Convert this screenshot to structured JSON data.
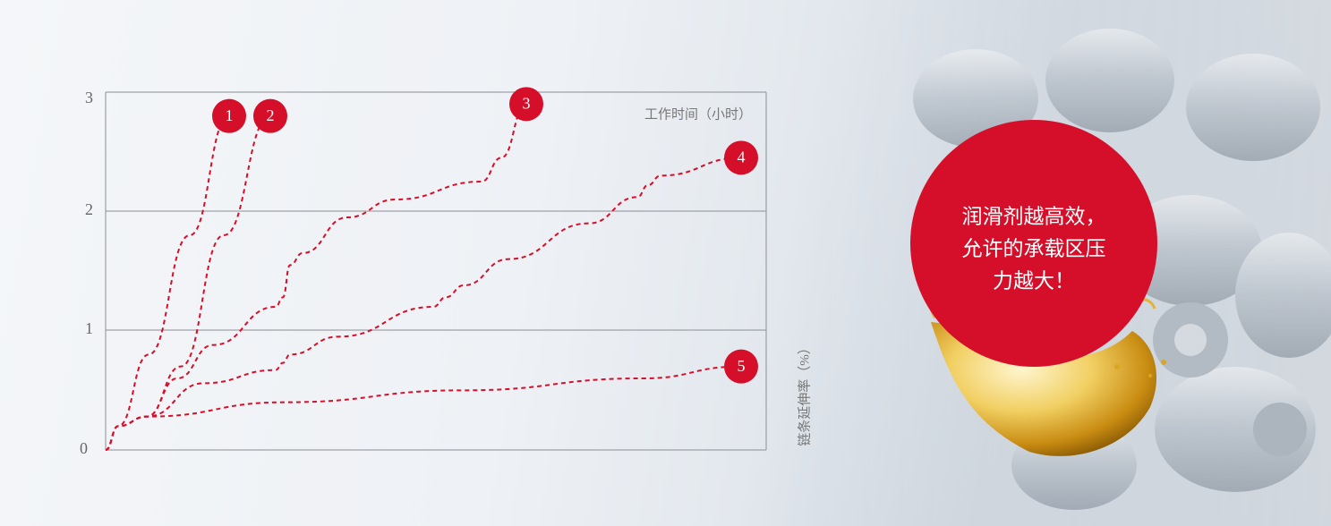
{
  "callout": {
    "lines": [
      "润滑剂越高效，",
      "允许的承载区压",
      "力越大！"
    ],
    "color": "#d50f2a"
  },
  "chart_data": {
    "type": "line",
    "x_label": "工作时间（小时）",
    "y_label": "链条延伸率（%）",
    "ylim": [
      0,
      3
    ],
    "y_ticks": [
      "0",
      "1",
      "2",
      "3"
    ],
    "grid": true,
    "line_style": "dashed",
    "line_color": "#d50f2a",
    "series": [
      {
        "marker": "1",
        "points": [
          [
            0,
            0
          ],
          [
            7,
            0.2
          ],
          [
            24,
            0.8
          ],
          [
            47,
            1.8
          ],
          [
            69,
            2.8
          ]
        ]
      },
      {
        "marker": "2",
        "points": [
          [
            0,
            0
          ],
          [
            7,
            0.2
          ],
          [
            23,
            0.28
          ],
          [
            42,
            0.7
          ],
          [
            66,
            1.8
          ],
          [
            92,
            2.8
          ]
        ]
      },
      {
        "marker": "3",
        "points": [
          [
            0,
            0
          ],
          [
            7,
            0.2
          ],
          [
            23,
            0.28
          ],
          [
            40,
            0.6
          ],
          [
            60,
            0.88
          ],
          [
            95,
            1.2
          ],
          [
            99,
            1.28
          ],
          [
            103,
            1.55
          ],
          [
            110,
            1.65
          ],
          [
            135,
            1.95
          ],
          [
            162,
            2.1
          ],
          [
            210,
            2.25
          ],
          [
            221,
            2.45
          ],
          [
            235,
            2.9
          ]
        ]
      },
      {
        "marker": "4",
        "points": [
          [
            0,
            0
          ],
          [
            7,
            0.2
          ],
          [
            23,
            0.28
          ],
          [
            55,
            0.56
          ],
          [
            95,
            0.67
          ],
          [
            99,
            0.73
          ],
          [
            103,
            0.8
          ],
          [
            130,
            0.95
          ],
          [
            183,
            1.2
          ],
          [
            190,
            1.28
          ],
          [
            200,
            1.38
          ],
          [
            225,
            1.6
          ],
          [
            270,
            1.9
          ],
          [
            297,
            2.12
          ],
          [
            303,
            2.22
          ],
          [
            310,
            2.3
          ],
          [
            355,
            2.45
          ]
        ]
      },
      {
        "marker": "5",
        "points": [
          [
            0,
            0
          ],
          [
            7,
            0.2
          ],
          [
            23,
            0.28
          ],
          [
            100,
            0.4
          ],
          [
            200,
            0.5
          ],
          [
            300,
            0.6
          ],
          [
            355,
            0.7
          ]
        ]
      }
    ]
  }
}
